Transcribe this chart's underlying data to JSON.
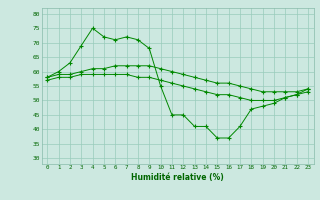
{
  "xlabel": "Humidité relative (%)",
  "ylabel": "",
  "background_color": "#cce8e0",
  "grid_color": "#99ccbb",
  "line_color": "#008800",
  "xmin": -0.5,
  "xmax": 23.5,
  "ymin": 28,
  "ymax": 82,
  "yticks": [
    30,
    35,
    40,
    45,
    50,
    55,
    60,
    65,
    70,
    75,
    80
  ],
  "xticks": [
    0,
    1,
    2,
    3,
    4,
    5,
    6,
    7,
    8,
    9,
    10,
    11,
    12,
    13,
    14,
    15,
    16,
    17,
    18,
    19,
    20,
    21,
    22,
    23
  ],
  "series1": [
    58,
    60,
    63,
    69,
    75,
    72,
    71,
    72,
    71,
    68,
    55,
    45,
    45,
    41,
    41,
    37,
    37,
    41,
    47,
    48,
    49,
    51,
    52,
    54
  ],
  "series2": [
    57,
    58,
    58,
    59,
    59,
    59,
    59,
    59,
    58,
    58,
    57,
    56,
    55,
    54,
    53,
    52,
    52,
    51,
    50,
    50,
    50,
    51,
    52,
    53
  ],
  "series3": [
    58,
    59,
    59,
    60,
    61,
    61,
    62,
    62,
    62,
    62,
    61,
    60,
    59,
    58,
    57,
    56,
    56,
    55,
    54,
    53,
    53,
    53,
    53,
    54
  ]
}
